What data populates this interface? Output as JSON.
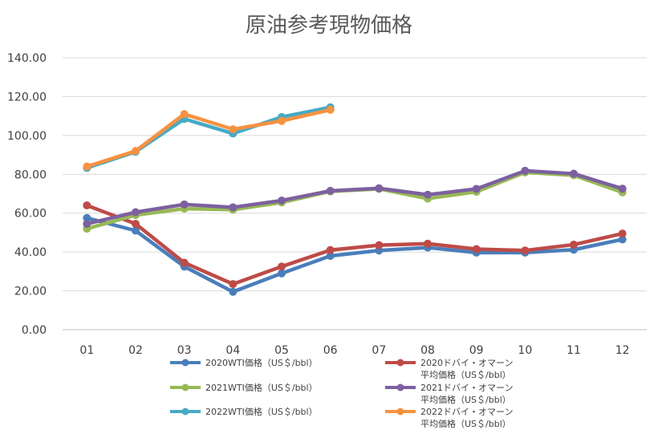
{
  "chart_data": {
    "type": "line",
    "title": "原油参考現物価格",
    "xlabel": "",
    "ylabel": "",
    "categories": [
      "01",
      "02",
      "03",
      "04",
      "05",
      "06",
      "07",
      "08",
      "09",
      "10",
      "11",
      "12"
    ],
    "ylim": [
      0,
      140
    ],
    "yticks": [
      "0.00",
      "20.00",
      "40.00",
      "60.00",
      "80.00",
      "100.00",
      "120.00",
      "140.00"
    ],
    "grid": true,
    "legend_position": "bottom",
    "series": [
      {
        "name": "2020WTI価格（US＄/bbl）",
        "color": "#4A7EBB",
        "values": [
          57.5,
          51.0,
          32.5,
          19.5,
          29.0,
          38.0,
          40.8,
          42.3,
          39.7,
          39.7,
          41.2,
          46.5
        ]
      },
      {
        "name": "2020ドバイ・オマーン\n平均価格（US＄/bbl）",
        "color": "#BE4B48",
        "values": [
          64.0,
          54.5,
          34.5,
          23.5,
          32.5,
          41.0,
          43.5,
          44.3,
          41.5,
          40.8,
          43.8,
          49.5
        ]
      },
      {
        "name": "2021WTI価格（US＄/bbl）",
        "color": "#98B954",
        "values": [
          52.0,
          59.0,
          62.3,
          61.8,
          65.5,
          71.2,
          72.5,
          67.5,
          71.0,
          81.0,
          79.5,
          70.7
        ]
      },
      {
        "name": "2021ドバイ・オマーン\n平均価格（US＄/bbl）",
        "color": "#7D60A0",
        "values": [
          54.5,
          60.5,
          64.5,
          63.0,
          66.5,
          71.5,
          72.8,
          69.5,
          72.5,
          81.8,
          80.3,
          72.6
        ]
      },
      {
        "name": "2022WTI価格（US＄/bbl）",
        "color": "#46AAC5",
        "values": [
          83.3,
          91.6,
          108.5,
          101.0,
          109.5,
          114.5,
          null,
          null,
          null,
          null,
          null,
          null
        ]
      },
      {
        "name": "2022ドバイ・オマーン\n平均価格（US＄/bbl）",
        "color": "#F69240",
        "values": [
          84.0,
          92.0,
          111.0,
          103.2,
          107.5,
          113.2,
          null,
          null,
          null,
          null,
          null,
          null
        ]
      }
    ]
  }
}
